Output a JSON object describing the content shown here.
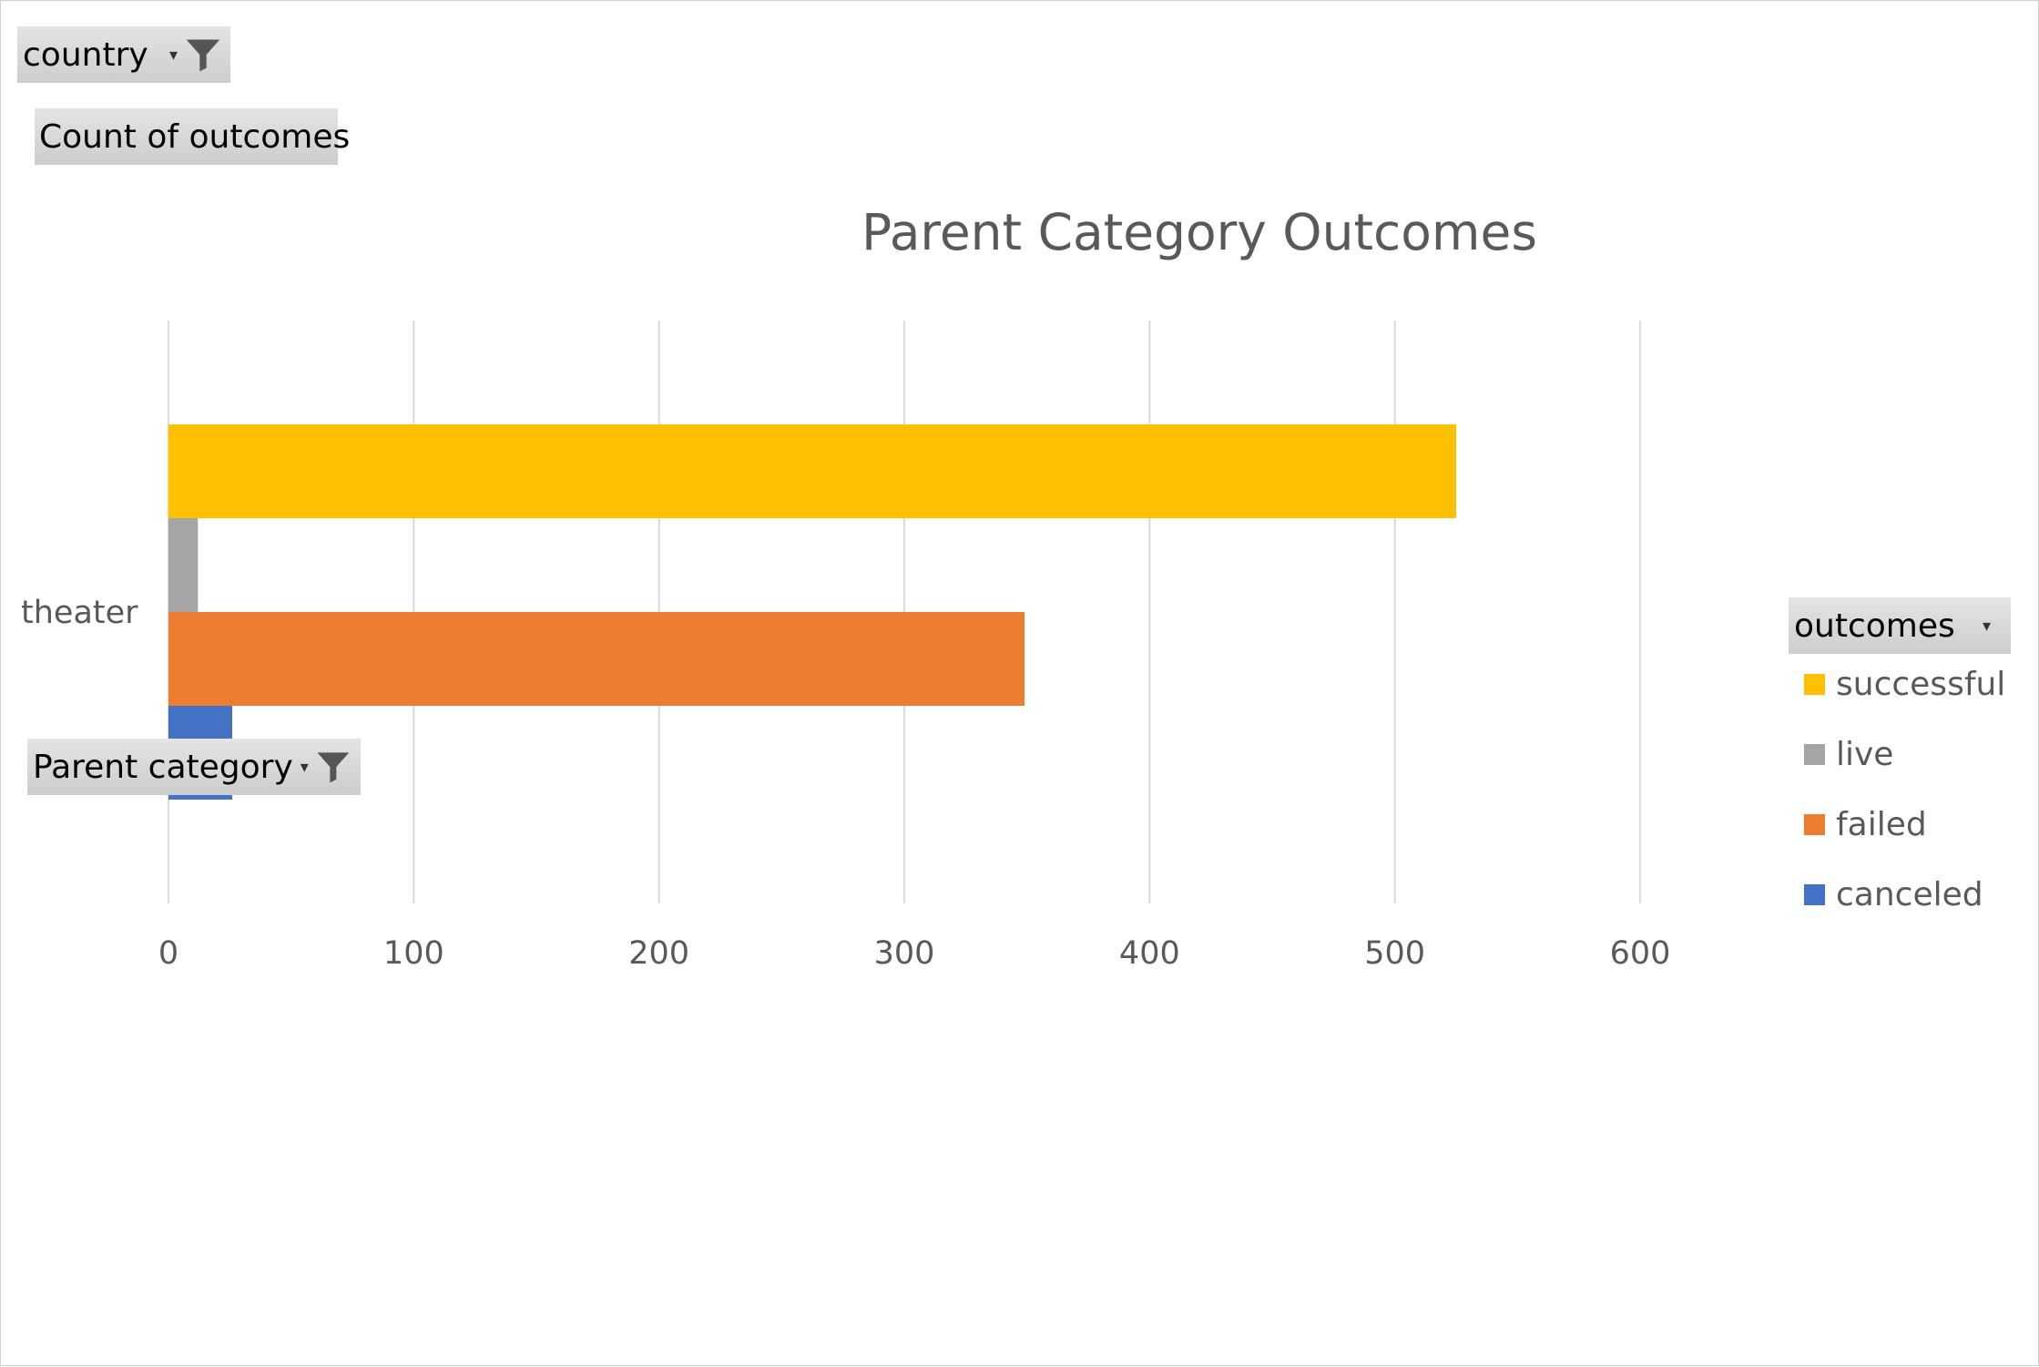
{
  "filters": {
    "country_label": "country",
    "values_label": "Count of outcomes",
    "row_field_label": "Parent category",
    "legend_field_label": "outcomes"
  },
  "chart_data": {
    "type": "bar",
    "orientation": "horizontal",
    "title": "Parent Category Outcomes",
    "categories": [
      "theater"
    ],
    "series": [
      {
        "name": "successful",
        "color": "#FFC000",
        "values": [
          525
        ]
      },
      {
        "name": "live",
        "color": "#A5A5A5",
        "values": [
          12
        ]
      },
      {
        "name": "failed",
        "color": "#ED7D31",
        "values": [
          349
        ]
      },
      {
        "name": "canceled",
        "color": "#4472C4",
        "values": [
          26
        ]
      }
    ],
    "xlim": [
      0,
      600
    ],
    "xticks": [
      0,
      100,
      200,
      300,
      400,
      500,
      600
    ],
    "grid": true,
    "legend_position": "right"
  }
}
